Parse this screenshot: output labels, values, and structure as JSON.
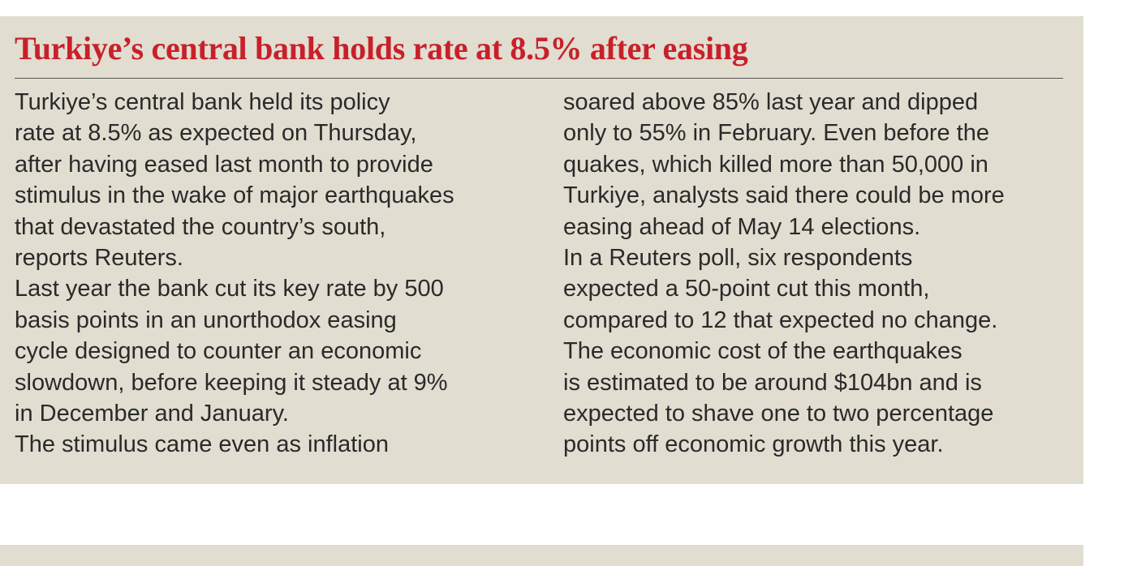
{
  "article": {
    "title": "Turkiye’s central bank holds rate at 8.5% after easing",
    "columns": [
      [
        "Turkiye’s central bank held its policy",
        "rate at 8.5% as expected on Thursday,",
        "after having eased last month to provide",
        "stimulus in the wake of major earthquakes",
        "that devastated the country’s south,",
        "reports Reuters.",
        "Last year the bank cut its key rate by 500",
        "basis points in an unorthodox easing",
        "cycle designed to counter an economic",
        "slowdown, before keeping it steady at 9%",
        "in December and January.",
        "The stimulus came even as inflation"
      ],
      [
        "soared above 85% last year and dipped",
        "only to 55% in February. Even before the",
        "quakes, which killed more than 50,000 in",
        "Turkiye, analysts said there could be more",
        "easing ahead of May 14 elections.",
        "In a Reuters poll, six respondents",
        "expected a 50-point cut this month,",
        "compared to 12 that expected no change.",
        "The economic cost of the earthquakes",
        "is estimated to be around $104bn and is",
        "expected to shave one to two percentage",
        "points off economic growth this year."
      ]
    ]
  }
}
